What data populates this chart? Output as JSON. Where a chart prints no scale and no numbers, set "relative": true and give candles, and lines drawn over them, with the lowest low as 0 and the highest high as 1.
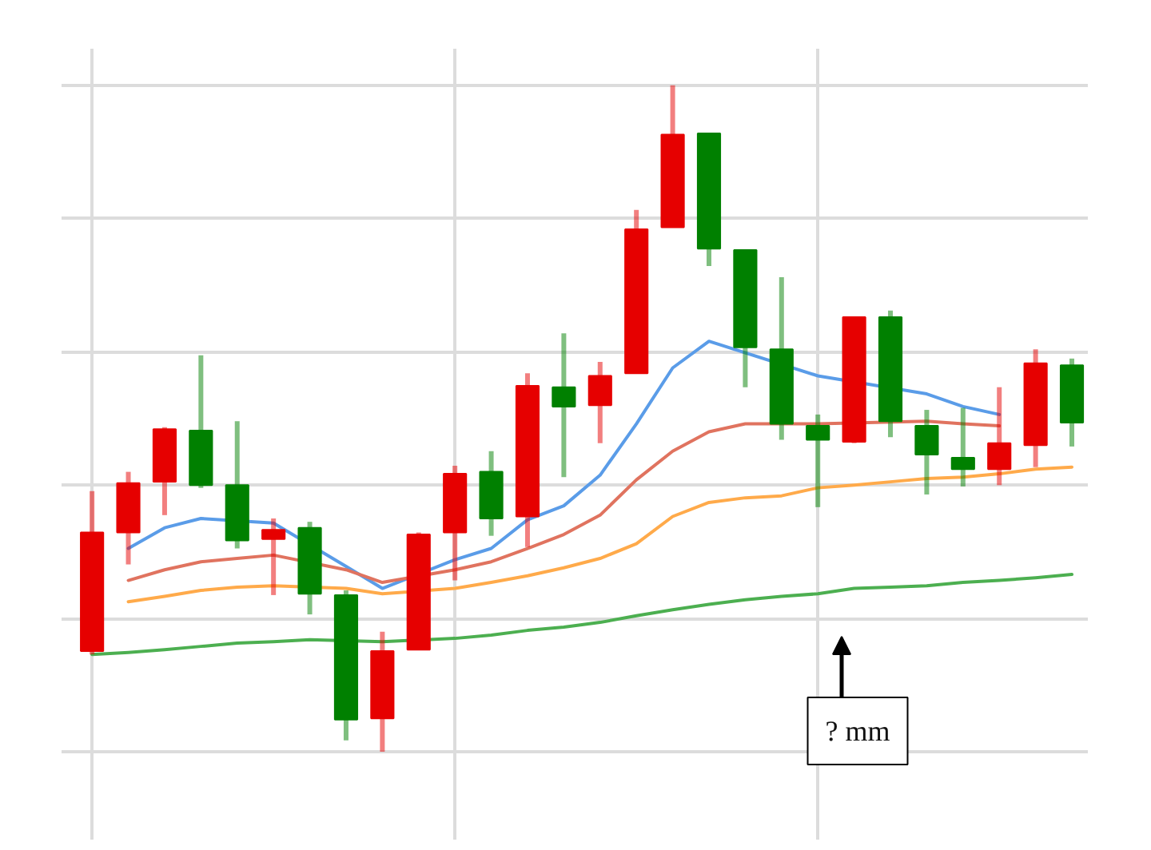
{
  "chart_data": {
    "type": "candlestick",
    "relative": true,
    "grid": true,
    "categories": [
      null,
      null,
      null,
      null,
      null,
      null,
      null,
      null,
      null,
      null,
      null,
      null,
      null,
      null,
      null,
      null,
      null,
      null,
      null,
      null,
      null,
      null,
      null,
      null,
      null,
      null,
      null,
      null
    ],
    "ohlc": [
      [
        0.151,
        0.391,
        0.146,
        0.329
      ],
      [
        0.329,
        0.42,
        0.281,
        0.403
      ],
      [
        0.405,
        0.487,
        0.355,
        0.484
      ],
      [
        0.482,
        0.595,
        0.396,
        0.4
      ],
      [
        0.4,
        0.496,
        0.305,
        0.317
      ],
      [
        0.319,
        0.35,
        0.235,
        0.333
      ],
      [
        0.336,
        0.345,
        0.206,
        0.237
      ],
      [
        0.235,
        0.242,
        0.017,
        0.048
      ],
      [
        0.05,
        0.18,
        0.0,
        0.151
      ],
      [
        0.153,
        0.329,
        0.153,
        0.326
      ],
      [
        0.329,
        0.429,
        0.257,
        0.417
      ],
      [
        0.42,
        0.451,
        0.324,
        0.35
      ],
      [
        0.353,
        0.568,
        0.307,
        0.549
      ],
      [
        0.547,
        0.628,
        0.412,
        0.518
      ],
      [
        0.52,
        0.585,
        0.463,
        0.564
      ],
      [
        0.568,
        0.813,
        0.568,
        0.784
      ],
      [
        0.787,
        1.0,
        0.787,
        0.926
      ],
      [
        0.928,
        0.928,
        0.729,
        0.755
      ],
      [
        0.753,
        0.753,
        0.547,
        0.607
      ],
      [
        0.604,
        0.712,
        0.468,
        0.492
      ],
      [
        0.489,
        0.506,
        0.367,
        0.468
      ],
      [
        0.465,
        0.652,
        0.463,
        0.652
      ],
      [
        0.652,
        0.662,
        0.472,
        0.496
      ],
      [
        0.489,
        0.513,
        0.386,
        0.446
      ],
      [
        0.441,
        0.516,
        0.398,
        0.424
      ],
      [
        0.424,
        0.547,
        0.4,
        0.463
      ],
      [
        0.46,
        0.604,
        0.427,
        0.583
      ],
      [
        0.58,
        0.59,
        0.458,
        0.494
      ]
    ],
    "colors": [
      "#e60000",
      "#e60000",
      "#e60000",
      "#008000",
      "#008000",
      "#e60000",
      "#008000",
      "#008000",
      "#e60000",
      "#e60000",
      "#e60000",
      "#008000",
      "#e60000",
      "#008000",
      "#e60000",
      "#e60000",
      "#e60000",
      "#008000",
      "#008000",
      "#008000",
      "#008000",
      "#e60000",
      "#008000",
      "#008000",
      "#008000",
      "#e60000",
      "#e60000",
      "#008000"
    ],
    "series": [
      {
        "type": "line",
        "color": "#5a9ce8",
        "values": [
          null,
          0.305,
          0.336,
          0.35,
          null,
          0.343,
          null,
          0.278,
          0.245,
          null,
          0.288,
          0.305,
          0.348,
          0.369,
          0.415,
          0.492,
          0.576,
          0.616,
          null,
          null,
          0.564,
          null,
          null,
          0.537,
          0.518,
          0.506,
          null,
          null
        ]
      },
      {
        "type": "line",
        "color": "#e0735f",
        "values": [
          null,
          0.257,
          0.273,
          0.285,
          0.29,
          0.295,
          null,
          0.273,
          0.254,
          null,
          0.273,
          0.285,
          0.305,
          0.326,
          0.355,
          0.408,
          0.451,
          0.48,
          0.492,
          null,
          0.492,
          null,
          null,
          0.496,
          0.492,
          0.489,
          null,
          null
        ]
      },
      {
        "type": "line",
        "color": "#ffaa4a",
        "values": [
          null,
          0.225,
          0.233,
          0.242,
          0.247,
          0.249,
          null,
          0.245,
          0.237,
          null,
          0.245,
          0.254,
          0.264,
          0.276,
          0.29,
          0.312,
          0.353,
          0.374,
          0.381,
          0.384,
          0.396,
          0.4,
          0.405,
          0.41,
          0.412,
          0.417,
          0.424,
          0.427
        ]
      },
      {
        "type": "line",
        "color": "#4caf50",
        "values": [
          0.146,
          0.149,
          0.153,
          0.158,
          0.163,
          0.165,
          0.168,
          null,
          0.165,
          null,
          0.17,
          0.175,
          0.182,
          0.187,
          0.194,
          0.204,
          0.213,
          0.221,
          0.228,
          0.233,
          0.237,
          0.245,
          0.247,
          0.249,
          0.254,
          0.257,
          0.261,
          0.266
        ]
      }
    ],
    "annotations": [
      "? mm"
    ]
  }
}
